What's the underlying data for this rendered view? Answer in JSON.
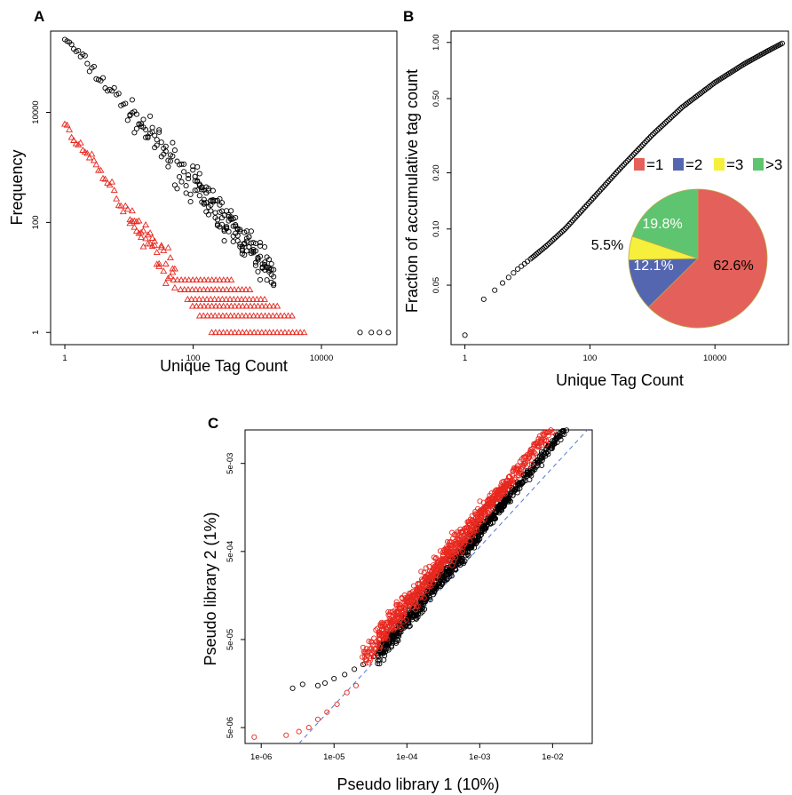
{
  "chart_data": [
    {
      "panel": "A",
      "type": "scatter",
      "xscale": "log",
      "yscale": "log",
      "xlabel": "Unique Tag Count",
      "ylabel": "Frequency",
      "xlim": [
        0.6,
        150000
      ],
      "ylim": [
        0.6,
        300000
      ],
      "xticks": [
        1,
        100,
        10000
      ],
      "xtick_labels": [
        "1",
        "100",
        "10000"
      ],
      "yticks": [
        1,
        100,
        10000
      ],
      "ytick_labels": [
        "1",
        "100",
        "10000"
      ],
      "series": [
        {
          "color": "#000000",
          "marker": "circle",
          "slope": -1.32,
          "anchor": [
            1,
            220000
          ],
          "x_range": [
            1,
            110000
          ],
          "ceiling_freq": [
            1,
            2,
            3,
            4,
            6,
            9
          ],
          "ceiling_x": [
            7000,
            5000,
            2600,
            1700,
            900,
            500
          ],
          "scatter": 0.28
        },
        {
          "color": "#e8271e",
          "marker": "triangle",
          "slope": -1.6,
          "anchor": [
            1,
            6000
          ],
          "x_range": [
            1,
            7000
          ],
          "ceiling_freq": [
            1,
            2,
            3,
            4,
            6,
            9
          ],
          "ceiling_x": [
            6000,
            3600,
            2300,
            1400,
            800,
            420
          ],
          "scatter": 0.25
        }
      ]
    },
    {
      "panel": "B",
      "type": "scatter",
      "xscale": "log",
      "yscale": "log",
      "xlabel": "Unique Tag Count",
      "ylabel": "Fraction of accumulative tag count",
      "xlim": [
        0.6,
        150000
      ],
      "ylim": [
        0.024,
        1.15
      ],
      "xticks": [
        1,
        100,
        10000
      ],
      "xtick_labels": [
        "1",
        "100",
        "10000"
      ],
      "yticks": [
        0.05,
        0.1,
        0.2,
        0.5,
        1.0
      ],
      "ytick_labels": [
        "0.05",
        "0.10",
        "0.20",
        "0.50",
        "1.00"
      ],
      "series": [
        {
          "color": "#000000",
          "marker": "circle",
          "points": [
            [
              1,
              0.027
            ],
            [
              2,
              0.042
            ],
            [
              3,
              0.047
            ],
            [
              5,
              0.055
            ],
            [
              7,
              0.061
            ],
            [
              10,
              0.067
            ],
            [
              20,
              0.081
            ],
            [
              40,
              0.1
            ],
            [
              100,
              0.14
            ],
            [
              300,
              0.21
            ],
            [
              1000,
              0.32
            ],
            [
              3000,
              0.45
            ],
            [
              10000,
              0.61
            ],
            [
              30000,
              0.77
            ],
            [
              70000,
              0.9
            ],
            [
              120000,
              0.99
            ]
          ]
        }
      ],
      "inset": {
        "type": "pie",
        "legend": [
          {
            "label": "=1",
            "color": "#e4605a"
          },
          {
            "label": "=2",
            "color": "#5566b0"
          },
          {
            "label": "=3",
            "color": "#f6ef3b"
          },
          {
            "label": ">3",
            "color": "#5fc46f"
          }
        ],
        "slices": [
          {
            "category": "=1",
            "value": 62.6,
            "label": "62.6%",
            "label_color": "#000000"
          },
          {
            "category": "=2",
            "value": 12.1,
            "label": "12.1%",
            "label_color": "#ffffff"
          },
          {
            "category": "=3",
            "value": 5.5,
            "label": "5.5%",
            "label_color": "#000000"
          },
          {
            "category": ">3",
            "value": 19.8,
            "label": "19.8%",
            "label_color": "#ffffff"
          }
        ]
      }
    },
    {
      "panel": "C",
      "type": "scatter",
      "xscale": "log",
      "yscale": "log",
      "xlabel": "Pseudo library 1 (10%)",
      "ylabel": "Pseudo library 2 (1%)",
      "xlim": [
        6e-07,
        0.035
      ],
      "ylim": [
        3.3e-06,
        0.012
      ],
      "xticks": [
        1e-06,
        1e-05,
        0.0001,
        0.001,
        0.01
      ],
      "xtick_labels": [
        "1e-06",
        "1e-05",
        "1e-04",
        "1e-03",
        "1e-02"
      ],
      "yticks": [
        5e-06,
        5e-05,
        0.0005,
        0.005
      ],
      "ytick_labels": [
        "5e-06",
        "5e-05",
        "5e-04",
        "5e-03"
      ],
      "reference_line": {
        "slope": 1,
        "color": "#5577cc",
        "style": "dashed"
      },
      "series": [
        {
          "color": "#000000",
          "marker": "circle",
          "low_points": [
            [
              2.7e-06,
              1.4e-05
            ],
            [
              3.7e-06,
              1.55e-05
            ],
            [
              6e-06,
              1.5e-05
            ],
            [
              7.5e-06,
              1.6e-05
            ],
            [
              1e-05,
              1.8e-05
            ],
            [
              1.4e-05,
              2e-05
            ],
            [
              1.9e-05,
              2.3e-05
            ],
            [
              2.5e-05,
              2.6e-05
            ],
            [
              3.5e-05,
              3.2e-05
            ]
          ],
          "band": [
            4e-05,
            0.02
          ],
          "offset": -0.08,
          "spread": 0.1
        },
        {
          "color": "#e8271e",
          "marker": "circle",
          "low_points": [
            [
              8e-07,
              3.9e-06
            ],
            [
              2.2e-06,
              4.1e-06
            ],
            [
              3.3e-06,
              4.5e-06
            ],
            [
              4.5e-06,
              5e-06
            ],
            [
              6e-06,
              6.2e-06
            ],
            [
              8e-06,
              7.5e-06
            ],
            [
              1.1e-05,
              9.2e-06
            ],
            [
              1.5e-05,
              1.25e-05
            ],
            [
              2e-05,
              1.5e-05
            ]
          ],
          "band": [
            2.5e-05,
            0.02
          ],
          "offset": 0.1,
          "spread": 0.13
        }
      ]
    }
  ]
}
